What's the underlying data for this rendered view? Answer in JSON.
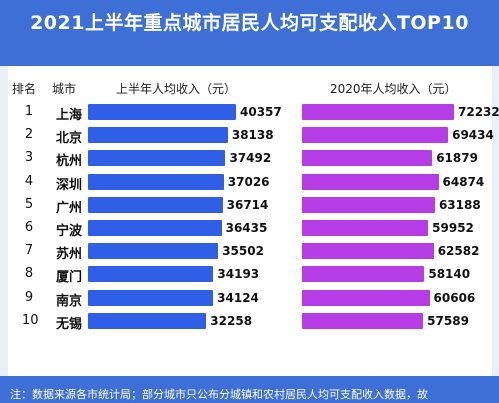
{
  "title": "2021上半年重点城市居民人均可支配收入TOP10",
  "colors": {
    "bar_2021": "#2f5fe6",
    "bar_2020": "#b63ce6",
    "background": "#3d6fd6"
  },
  "chart_data": {
    "type": "bar",
    "orientation": "horizontal",
    "columns": {
      "rank": "排名",
      "city": "城市",
      "series1": "上半年人均收入（元）",
      "series2": "2020年人均收入（元）"
    },
    "ranks": [
      "1",
      "2",
      "3",
      "4",
      "5",
      "6",
      "7",
      "8",
      "9",
      "10"
    ],
    "categories": [
      "上海",
      "北京",
      "杭州",
      "深圳",
      "广州",
      "宁波",
      "苏州",
      "厦门",
      "南京",
      "无锡"
    ],
    "series": [
      {
        "name": "上半年人均收入（元）",
        "values": [
          40357,
          38138,
          37492,
          37026,
          36714,
          36435,
          35502,
          34193,
          34124,
          32258
        ]
      },
      {
        "name": "2020年人均收入（元）",
        "values": [
          72232,
          69434,
          61879,
          64874,
          63188,
          59952,
          62582,
          58140,
          60606,
          57589
        ]
      }
    ]
  },
  "footnote": "注：数据来源各市统计局；部分城市只公布分城镇和农村居民人均可支配收入数据，故"
}
